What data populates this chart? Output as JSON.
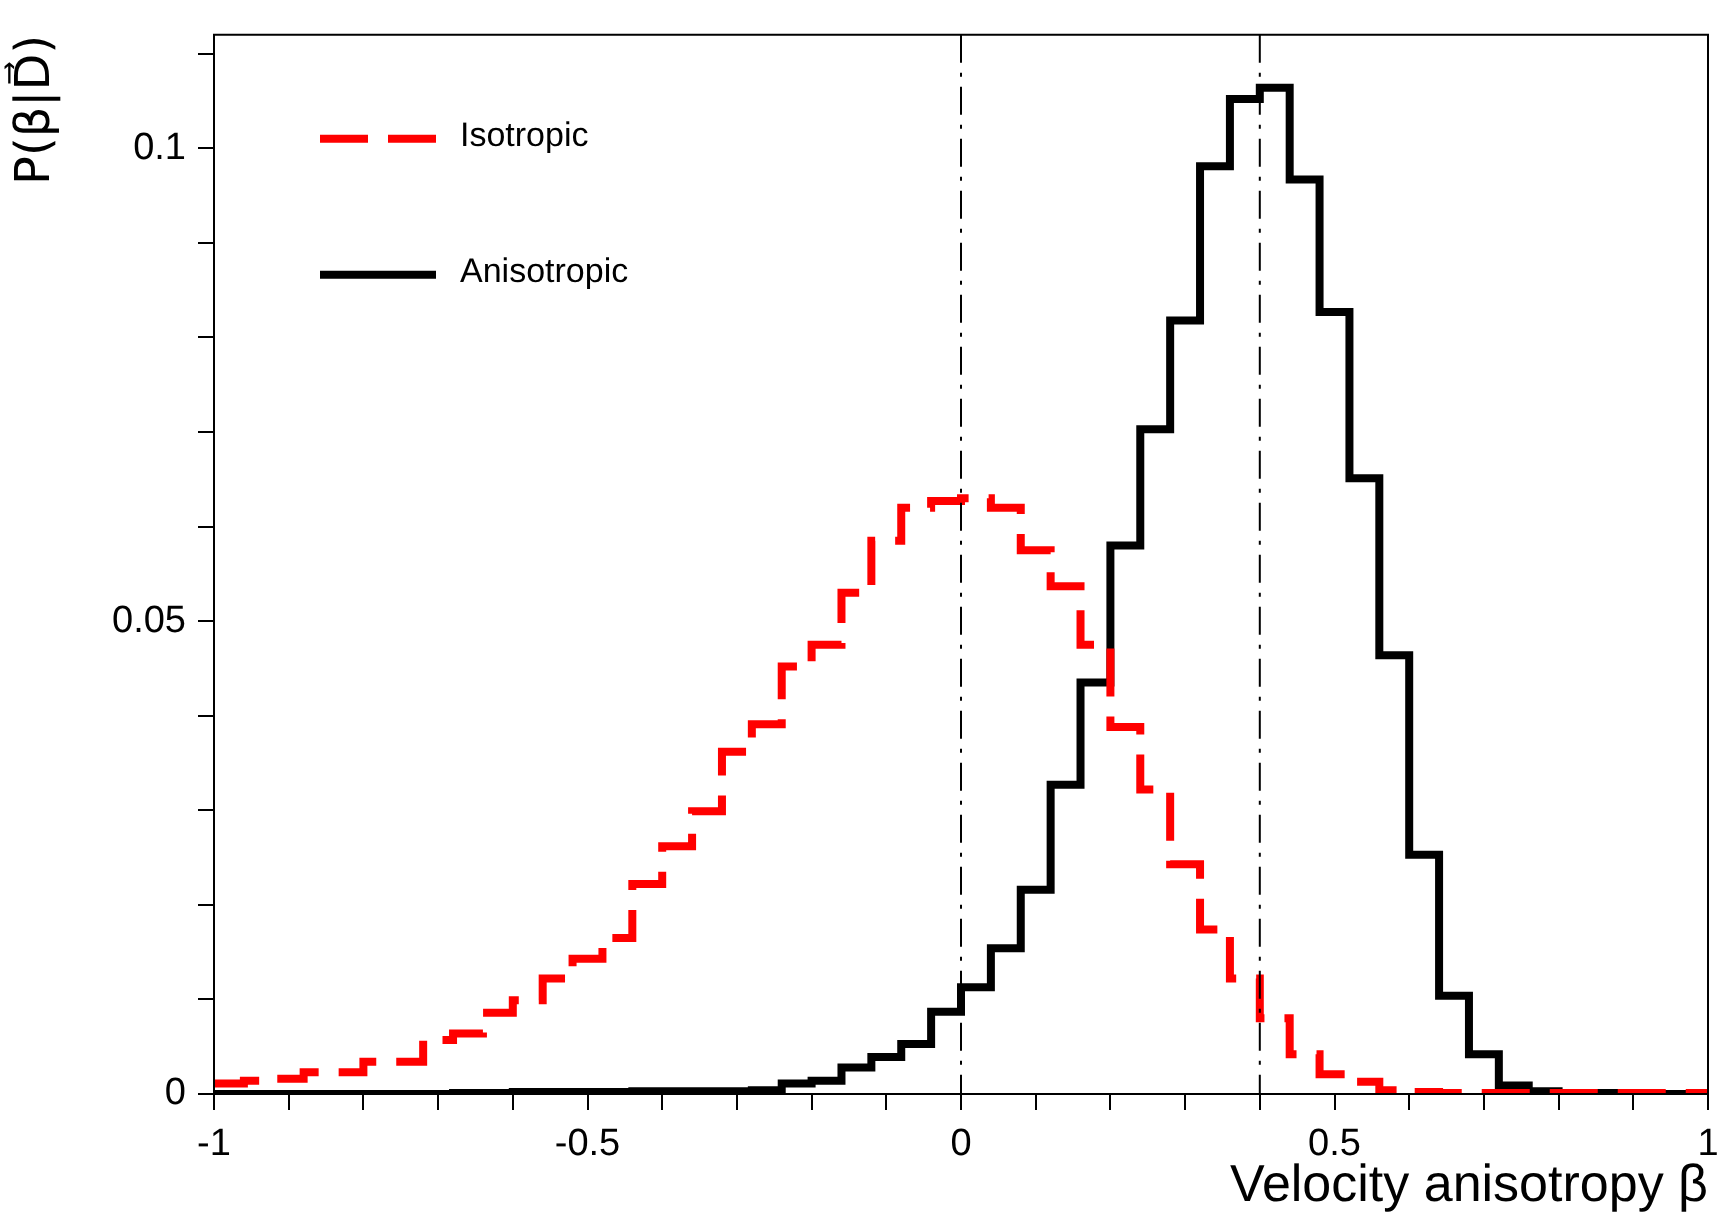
{
  "chart_data": {
    "type": "histogram",
    "xlabel": "Velocity anisotropy β",
    "ylabel": "P(β|D⃗)",
    "bins": [
      -1,
      -0.96,
      -0.92,
      -0.88,
      -0.84,
      -0.8,
      -0.76,
      -0.72,
      -0.68,
      -0.64,
      -0.6,
      -0.56,
      -0.52,
      -0.48,
      -0.44,
      -0.4,
      -0.36,
      -0.32,
      -0.28,
      -0.24,
      -0.2,
      -0.16,
      -0.12,
      -0.08,
      -0.04,
      0,
      0.04,
      0.08,
      0.12,
      0.16,
      0.2,
      0.24,
      0.28,
      0.32,
      0.36,
      0.4,
      0.44,
      0.48,
      0.52,
      0.56,
      0.6,
      0.64,
      0.68,
      0.72,
      0.76,
      0.8,
      0.84,
      0.88,
      0.92,
      0.96,
      1
    ],
    "series": [
      {
        "name": "Isotropic",
        "color": "#ff0000",
        "line_style": "dashed",
        "values": [
          0.0011,
          0.0014,
          0.0016,
          0.0023,
          0.0023,
          0.0034,
          0.0034,
          0.0057,
          0.0064,
          0.0086,
          0.0099,
          0.0122,
          0.0143,
          0.0165,
          0.0222,
          0.0262,
          0.0299,
          0.0362,
          0.0391,
          0.0452,
          0.0475,
          0.053,
          0.0585,
          0.062,
          0.0627,
          0.063,
          0.062,
          0.0575,
          0.0537,
          0.0475,
          0.0388,
          0.0322,
          0.0243,
          0.0174,
          0.0122,
          0.008,
          0.0042,
          0.0021,
          0.0013,
          0.0004,
          0.0002,
          0.0001,
          0.0001,
          0.0001,
          0.0001,
          0.0001,
          0.0001,
          0.0001,
          0.0001,
          0.0001
        ]
      },
      {
        "name": "Anisotropic",
        "color": "#000000",
        "line_style": "solid",
        "values": [
          0,
          0,
          0,
          0,
          0,
          0,
          0,
          0,
          0.0001,
          0.0001,
          0.0002,
          0.0002,
          0.0002,
          0.0002,
          0.0003,
          0.0003,
          0.0003,
          0.0003,
          0.0004,
          0.0011,
          0.0014,
          0.0028,
          0.0039,
          0.0053,
          0.0087,
          0.0113,
          0.0154,
          0.0216,
          0.0327,
          0.0435,
          0.058,
          0.0703,
          0.0818,
          0.0981,
          0.1052,
          0.1064,
          0.0967,
          0.0827,
          0.0651,
          0.0464,
          0.0253,
          0.0104,
          0.0042,
          0.0009,
          0.0003,
          0.0001,
          0.0001,
          0.0001,
          0,
          0
        ]
      }
    ],
    "xlim": [
      -1,
      1
    ],
    "ylim": [
      0,
      0.112
    ],
    "xticks": [
      -1,
      {
        "value": -0.9,
        "label": null
      },
      {
        "value": -0.8,
        "label": null
      },
      {
        "value": -0.7,
        "label": null
      },
      {
        "value": -0.6,
        "label": null
      },
      -0.5,
      {
        "value": -0.4,
        "label": null
      },
      {
        "value": -0.3,
        "label": null
      },
      {
        "value": -0.2,
        "label": null
      },
      {
        "value": -0.1,
        "label": null
      },
      0,
      {
        "value": 0.1,
        "label": null
      },
      {
        "value": 0.2,
        "label": null
      },
      {
        "value": 0.3,
        "label": null
      },
      {
        "value": 0.4,
        "label": null
      },
      0.5,
      {
        "value": 0.6,
        "label": null
      },
      {
        "value": 0.7,
        "label": null
      },
      {
        "value": 0.8,
        "label": null
      },
      {
        "value": 0.9,
        "label": null
      },
      1
    ],
    "yticks": [
      0,
      {
        "value": 0.01,
        "label": null
      },
      {
        "value": 0.02,
        "label": null
      },
      {
        "value": 0.03,
        "label": null
      },
      {
        "value": 0.04,
        "label": null
      },
      0.05,
      {
        "value": 0.06,
        "label": null
      },
      {
        "value": 0.07,
        "label": null
      },
      {
        "value": 0.08,
        "label": null
      },
      {
        "value": 0.09,
        "label": null
      },
      0.1,
      {
        "value": 0.11,
        "label": null
      }
    ],
    "ref_lines": [
      {
        "axis": "x",
        "value": 0,
        "color": "#000000",
        "line_style": "dashed"
      },
      {
        "axis": "x",
        "value": 0.4,
        "color": "#000000",
        "line_style": "dashed"
      }
    ],
    "grid": false,
    "legend": "top left"
  }
}
